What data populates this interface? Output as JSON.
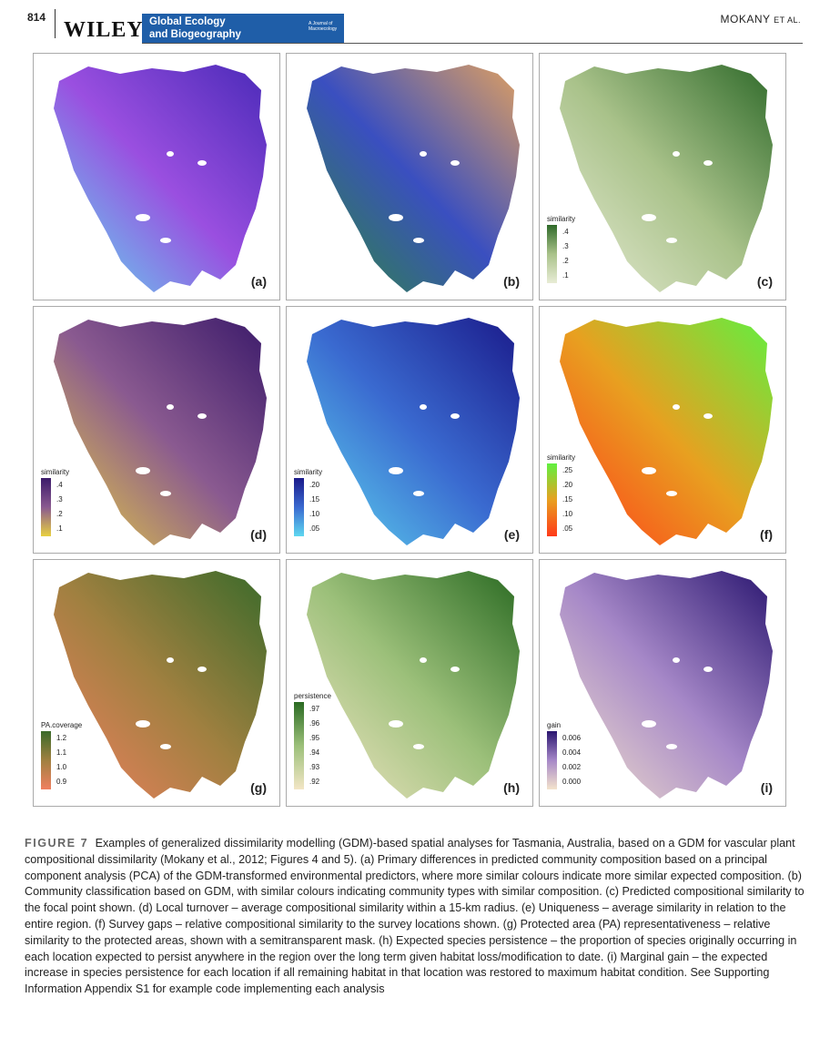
{
  "header": {
    "page_number": "814",
    "publisher": "WILEY",
    "journal_line1": "Global Ecology",
    "journal_line2": "and Biogeography",
    "journal_small": "A Journal of Macroecology",
    "authors": "MOKANY",
    "authors_suffix": "ET AL."
  },
  "panels": {
    "a": {
      "label": "(a)"
    },
    "b": {
      "label": "(b)"
    },
    "c": {
      "label": "(c)",
      "legend_title": "similarity",
      "ticks": [
        ".4",
        ".3",
        ".2",
        ".1"
      ]
    },
    "d": {
      "label": "(d)",
      "legend_title": "similarity",
      "ticks": [
        ".4",
        ".3",
        ".2",
        ".1"
      ]
    },
    "e": {
      "label": "(e)",
      "legend_title": "similarity",
      "ticks": [
        ".20",
        ".15",
        ".10",
        ".05"
      ]
    },
    "f": {
      "label": "(f)",
      "legend_title": "similarity",
      "ticks": [
        ".25",
        ".20",
        ".15",
        ".10",
        ".05"
      ]
    },
    "g": {
      "label": "(g)",
      "legend_title": "PA.coverage",
      "ticks": [
        "1.2",
        "1.1",
        "1.0",
        "0.9"
      ]
    },
    "h": {
      "label": "(h)",
      "legend_title": "persistence",
      "ticks": [
        ".97",
        ".96",
        ".95",
        ".94",
        ".93",
        ".92"
      ]
    },
    "i": {
      "label": "(i)",
      "legend_title": "gain",
      "ticks": [
        "0.006",
        "0.004",
        "0.002",
        "0.000"
      ]
    }
  },
  "caption": {
    "figure_label": "FIGURE 7",
    "text": "Examples of generalized dissimilarity modelling (GDM)-based spatial analyses for Tasmania, Australia, based on a GDM for vascular plant compositional dissimilarity (Mokany et al., 2012; Figures 4 and 5). (a) Primary differences in predicted community composition based on a principal component analysis (PCA) of the GDM-transformed environmental predictors, where more similar colours indicate more similar expected composition. (b) Community classification based on GDM, with similar colours indicating community types with similar composition. (c) Predicted compositional similarity to the focal point shown. (d) Local turnover – average compositional similarity within a 15-km radius. (e) Uniqueness – average similarity in relation to the entire region. (f) Survey gaps – relative compositional similarity to the survey locations shown. (g) Protected area (PA) representativeness – relative similarity to the protected areas, shown with a semitransparent mask. (h) Expected species persistence – the proportion of species originally occurring in each location expected to persist anywhere in the region over the long term given habitat loss/modification to date. (i) Marginal gain – the expected increase in species persistence for each location if all remaining habitat in that location was restored to maximum habitat condition. See Supporting Information Appendix S1 for example code implementing each analysis"
  },
  "colors": {
    "journal_blue": "#1f5ea8",
    "a": [
      "#5fe0f0",
      "#9a4fe0",
      "#4a2ab8"
    ],
    "b": [
      "#2e8a3a",
      "#3a4fc0",
      "#e0a060"
    ],
    "c": [
      "#e8ecd6",
      "#a9c28a",
      "#2f6a2a"
    ],
    "d": [
      "#e8d040",
      "#8a5a90",
      "#3b1a6a"
    ],
    "e": [
      "#5fd8f0",
      "#3a6ad0",
      "#1a1a8a"
    ],
    "f": [
      "#ff3a1a",
      "#e8a020",
      "#60f040"
    ],
    "g": [
      "#f08060",
      "#a08040",
      "#3a6a2a"
    ],
    "h": [
      "#f3e6c6",
      "#9cc07a",
      "#2a6a22"
    ],
    "i": [
      "#f4e3cc",
      "#a688c8",
      "#2a1670"
    ]
  }
}
